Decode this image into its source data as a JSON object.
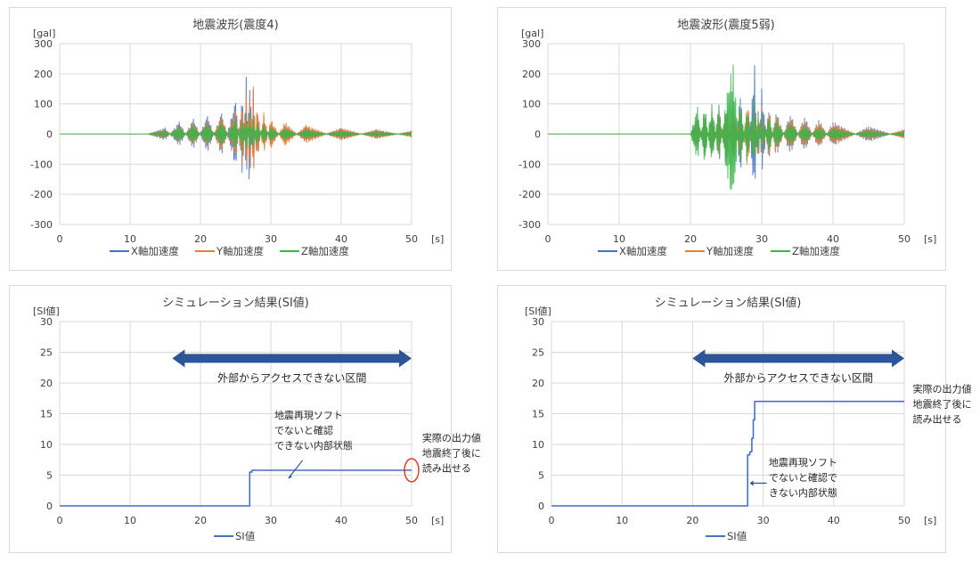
{
  "colors": {
    "x": "#4472c4",
    "y": "#ed7d31",
    "z": "#3cb44b",
    "si": "#4472c4",
    "grid": "#d9d9d9",
    "arrow": "#2e5597",
    "circle": "#e0301e"
  },
  "chart_data": [
    {
      "type": "line",
      "title": "地震波形(震度4)",
      "ylabel": "[gal]",
      "xlabel": "[s]",
      "xlim": [
        0,
        50
      ],
      "ylim": [
        -300,
        300
      ],
      "xticks": [
        "0",
        "10",
        "20",
        "30",
        "40",
        "50"
      ],
      "yticks": [
        "300",
        "200",
        "100",
        "0",
        "-100",
        "-200",
        "-300"
      ],
      "grid": true,
      "legend_position": "bottom",
      "series": [
        {
          "name": "X軸加速度",
          "x": [
            0,
            12.5,
            15,
            17,
            19,
            21,
            23,
            25,
            26,
            26.5,
            27,
            27.5,
            28,
            29,
            30,
            32,
            35,
            40,
            45,
            50
          ],
          "y": [
            0,
            0,
            20,
            -40,
            50,
            -60,
            70,
            -110,
            150,
            -190,
            220,
            -150,
            90,
            -60,
            40,
            -30,
            25,
            -20,
            15,
            -10
          ]
        },
        {
          "name": "Y軸加速度",
          "x": [
            0,
            12.5,
            15,
            17,
            19,
            21,
            23,
            25,
            26,
            26.5,
            27,
            27.5,
            28,
            29,
            30,
            32,
            35,
            40,
            45,
            50
          ],
          "y": [
            0,
            0,
            -15,
            30,
            -40,
            45,
            -60,
            80,
            -120,
            140,
            -160,
            160,
            -100,
            70,
            -50,
            40,
            -30,
            20,
            -15,
            10
          ]
        },
        {
          "name": "Z軸加速度",
          "x": [
            0,
            12.5,
            15,
            17,
            19,
            21,
            23,
            25,
            26,
            26.5,
            27,
            27.5,
            28,
            29,
            30,
            32,
            35,
            40,
            45,
            50
          ],
          "y": [
            0,
            0,
            10,
            -25,
            30,
            -35,
            40,
            -50,
            60,
            -70,
            70,
            -60,
            45,
            -35,
            25,
            -20,
            15,
            -10,
            8,
            -5
          ]
        }
      ]
    },
    {
      "type": "line",
      "title": "地震波形(震度5弱)",
      "ylabel": "[gal]",
      "xlabel": "[s]",
      "xlim": [
        0,
        50
      ],
      "ylim": [
        -300,
        300
      ],
      "xticks": [
        "0",
        "10",
        "20",
        "30",
        "40",
        "50"
      ],
      "yticks": [
        "300",
        "200",
        "100",
        "0",
        "-100",
        "-200",
        "-300"
      ],
      "grid": true,
      "legend_position": "bottom",
      "series": [
        {
          "name": "X軸加速度",
          "x": [
            0,
            20,
            21,
            22,
            23,
            24,
            25,
            26,
            27,
            28,
            29,
            29.5,
            30,
            31,
            32,
            34,
            36,
            38,
            40,
            45,
            50
          ],
          "y": [
            0,
            0,
            60,
            -80,
            90,
            -100,
            110,
            -100,
            130,
            -110,
            230,
            -120,
            150,
            -90,
            80,
            -70,
            60,
            -50,
            40,
            -25,
            15
          ]
        },
        {
          "name": "Y軸加速度",
          "x": [
            0,
            20,
            21,
            22,
            23,
            24,
            25,
            26,
            27,
            28,
            29,
            29.5,
            30,
            31,
            32,
            34,
            36,
            38,
            40,
            45,
            50
          ],
          "y": [
            0,
            0,
            -50,
            70,
            -80,
            90,
            -100,
            110,
            -100,
            120,
            -110,
            100,
            -90,
            80,
            -70,
            60,
            -50,
            45,
            -35,
            20,
            -15
          ]
        },
        {
          "name": "Z軸加速度",
          "x": [
            0,
            20,
            21,
            22,
            23,
            24,
            25,
            26,
            27,
            28,
            29,
            29.5,
            30,
            31,
            32,
            34,
            36,
            38,
            40,
            45,
            50
          ],
          "y": [
            0,
            0,
            90,
            -100,
            110,
            -90,
            120,
            240,
            -110,
            100,
            -120,
            80,
            -70,
            60,
            -50,
            40,
            -30,
            25,
            -20,
            12,
            -8
          ]
        }
      ]
    },
    {
      "type": "line",
      "title": "シミュレーション結果(SI値)",
      "ylabel": "[SI値]",
      "xlabel": "[s]",
      "xlim": [
        0,
        50
      ],
      "ylim": [
        0,
        30
      ],
      "xticks": [
        "0",
        "10",
        "20",
        "30",
        "40",
        "50"
      ],
      "yticks": [
        "30",
        "25",
        "20",
        "15",
        "10",
        "5",
        "0"
      ],
      "grid": true,
      "legend_position": "bottom",
      "series": [
        {
          "name": "SI値",
          "x": [
            0,
            27,
            27,
            27.3,
            27.3,
            50
          ],
          "y": [
            0,
            0,
            5.5,
            5.5,
            5.8,
            5.8
          ]
        }
      ],
      "annotations": {
        "range_arrow": {
          "label": "外部からアクセスできない区間",
          "x_from": 16,
          "x_to": 50,
          "y": 24
        },
        "state_note": [
          "地震再現ソフト",
          "でないと確認",
          "できない内部状態"
        ],
        "output_note": [
          "実際の出力値",
          "地震終了後に",
          "読み出せる"
        ]
      }
    },
    {
      "type": "line",
      "title": "シミュレーション結果(SI値)",
      "ylabel": "[SI値]",
      "xlabel": "[s]",
      "xlim": [
        0,
        50
      ],
      "ylim": [
        0,
        30
      ],
      "xticks": [
        "0",
        "10",
        "20",
        "30",
        "40",
        "50"
      ],
      "yticks": [
        "30",
        "25",
        "20",
        "15",
        "10",
        "5",
        "0"
      ],
      "grid": true,
      "legend_position": "bottom",
      "series": [
        {
          "name": "SI値",
          "x": [
            0,
            27.8,
            27.8,
            28.1,
            28.1,
            28.4,
            28.4,
            28.6,
            28.6,
            28.8,
            28.8,
            50
          ],
          "y": [
            0,
            0,
            8.3,
            8.3,
            8.8,
            8.8,
            11,
            11,
            14,
            14,
            17,
            17
          ]
        }
      ],
      "annotations": {
        "range_arrow": {
          "label": "外部からアクセスできない区間",
          "x_from": 20,
          "x_to": 50,
          "y": 24
        },
        "state_note": [
          "地震再現ソフト",
          "でないと確認で",
          "きない内部状態"
        ],
        "output_note": [
          "実際の出力値",
          "地震終了後に",
          "読み出せる"
        ]
      }
    }
  ]
}
